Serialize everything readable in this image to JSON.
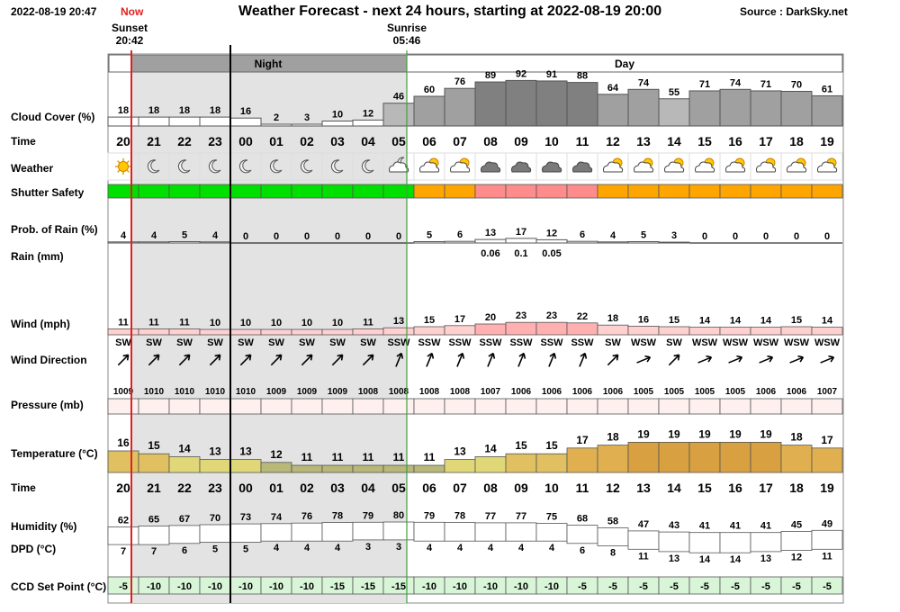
{
  "header": {
    "timestamp": "2022-08-19 20:47",
    "now_label": "Now",
    "title": "Weather Forecast - next 24 hours, starting at 2022-08-19 20:00",
    "source": "Source : DarkSky.net",
    "sunset_label": "Sunset",
    "sunset_time": "20:42",
    "sunrise_label": "Sunrise",
    "sunrise_time": "05:46"
  },
  "bands": {
    "night": "Night",
    "day": "Day"
  },
  "row_labels": {
    "cloud": "Cloud Cover (%)",
    "time": "Time",
    "weather": "Weather",
    "shutter": "Shutter Safety",
    "rain_prob": "Prob. of Rain (%)",
    "rain_mm": "Rain (mm)",
    "wind": "Wind (mph)",
    "wind_dir": "Wind Direction",
    "pressure": "Pressure (mb)",
    "temperature": "Temperature (°C)",
    "time2": "Time",
    "humidity": "Humidity (%)",
    "dpd": "DPD (°C)",
    "ccd": "CCD Set Point (°C)"
  },
  "colors": {
    "night_bg": "#e3e3e3",
    "band_header": "#a0a0a0",
    "shutter_safe": "#00e000",
    "shutter_warn": "#ffa500",
    "shutter_danger": "#ff8c8c",
    "now_line": "#e02020",
    "sunrise_line": "#40a040",
    "ccd_bg": "#d8f5d8"
  },
  "chart_data": {
    "type": "table",
    "hours": [
      "20",
      "21",
      "22",
      "23",
      "00",
      "01",
      "02",
      "03",
      "04",
      "05",
      "06",
      "07",
      "08",
      "09",
      "10",
      "11",
      "12",
      "13",
      "14",
      "15",
      "16",
      "17",
      "18",
      "19"
    ],
    "series": [
      {
        "name": "Cloud Cover (%)",
        "values": [
          18,
          18,
          18,
          18,
          16,
          2,
          3,
          10,
          12,
          46,
          60,
          76,
          89,
          92,
          91,
          88,
          64,
          74,
          55,
          71,
          74,
          71,
          70,
          61
        ]
      },
      {
        "name": "Weather",
        "values": [
          "sun-icon",
          "moon-icon",
          "moon-icon",
          "moon-icon",
          "moon-icon",
          "moon-icon",
          "moon-icon",
          "moon-icon",
          "moon-icon",
          "cloudy-night-icon",
          "partly-cloudy-icon",
          "partly-cloudy-icon",
          "cloud-icon",
          "cloud-icon",
          "cloud-icon",
          "cloud-icon",
          "partly-cloudy-icon",
          "partly-cloudy-icon",
          "partly-cloudy-icon",
          "partly-cloudy-icon",
          "partly-cloudy-icon",
          "partly-cloudy-icon",
          "partly-cloudy-icon",
          "partly-cloudy-icon"
        ]
      },
      {
        "name": "Shutter Safety",
        "values": [
          "safe",
          "safe",
          "safe",
          "safe",
          "safe",
          "safe",
          "safe",
          "safe",
          "safe",
          "safe",
          "warn",
          "warn",
          "danger",
          "danger",
          "danger",
          "danger",
          "warn",
          "warn",
          "warn",
          "warn",
          "warn",
          "warn",
          "warn",
          "warn"
        ]
      },
      {
        "name": "Prob. of Rain (%)",
        "values": [
          4,
          4,
          5,
          4,
          0,
          0,
          0,
          0,
          0,
          0,
          5,
          6,
          13,
          17,
          12,
          6,
          4,
          5,
          3,
          0,
          0,
          0,
          0,
          0
        ]
      },
      {
        "name": "Rain (mm)",
        "values": [
          null,
          null,
          null,
          null,
          null,
          null,
          null,
          null,
          null,
          null,
          null,
          null,
          "0.06",
          "0.1",
          "0.05",
          null,
          null,
          null,
          null,
          null,
          null,
          null,
          null,
          null
        ]
      },
      {
        "name": "Wind (mph)",
        "values": [
          11,
          11,
          11,
          10,
          10,
          10,
          10,
          10,
          11,
          13,
          15,
          17,
          20,
          23,
          23,
          22,
          18,
          16,
          15,
          14,
          14,
          14,
          15,
          14
        ]
      },
      {
        "name": "Wind Direction",
        "values": [
          "SW",
          "SW",
          "SW",
          "SW",
          "SW",
          "SW",
          "SW",
          "SW",
          "SW",
          "SSW",
          "SSW",
          "SSW",
          "SSW",
          "SSW",
          "SSW",
          "SSW",
          "SW",
          "WSW",
          "SW",
          "WSW",
          "WSW",
          "WSW",
          "WSW",
          "WSW"
        ]
      },
      {
        "name": "Pressure (mb)",
        "values": [
          1009,
          1010,
          1010,
          1010,
          1010,
          1009,
          1009,
          1009,
          1008,
          1008,
          1008,
          1008,
          1007,
          1006,
          1006,
          1006,
          1006,
          1005,
          1005,
          1005,
          1005,
          1006,
          1006,
          1007
        ]
      },
      {
        "name": "Temperature (°C)",
        "values": [
          16,
          15,
          14,
          13,
          13,
          12,
          11,
          11,
          11,
          11,
          11,
          13,
          14,
          15,
          15,
          17,
          18,
          19,
          19,
          19,
          19,
          19,
          18,
          17
        ]
      },
      {
        "name": "Humidity (%)",
        "values": [
          62,
          65,
          67,
          70,
          73,
          74,
          76,
          78,
          79,
          80,
          79,
          78,
          77,
          77,
          75,
          68,
          58,
          47,
          43,
          41,
          41,
          41,
          45,
          49
        ]
      },
      {
        "name": "DPD (°C)",
        "values": [
          7,
          7,
          6,
          5,
          5,
          4,
          4,
          4,
          3,
          3,
          4,
          4,
          4,
          4,
          4,
          6,
          8,
          11,
          13,
          14,
          14,
          13,
          12,
          11
        ]
      },
      {
        "name": "CCD Set Point (°C)",
        "values": [
          -5,
          -10,
          -10,
          -10,
          -10,
          -10,
          -10,
          -15,
          -15,
          -15,
          -10,
          -10,
          -10,
          -10,
          -10,
          -5,
          -5,
          -5,
          -5,
          -5,
          -5,
          -5,
          -5,
          -5
        ]
      }
    ]
  }
}
